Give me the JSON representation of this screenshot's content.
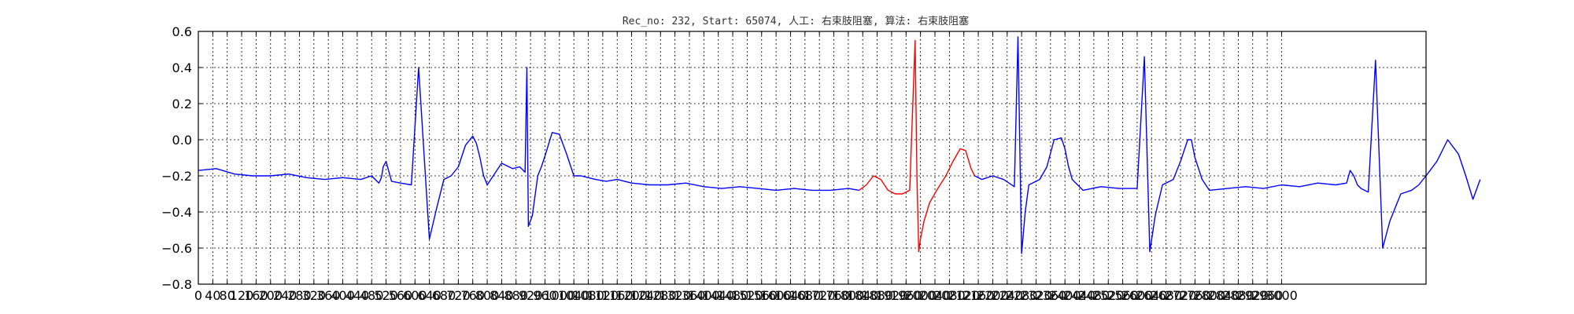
{
  "chart_data": {
    "type": "line",
    "title": "Rec_no: 232, Start: 65074, 人工: 右束肢阻塞, 算法: 右束肢阻塞",
    "xlabel": "",
    "ylabel": "",
    "xlim": [
      0,
      3400
    ],
    "ylim": [
      -0.8,
      0.6
    ],
    "yticks": [
      -0.8,
      -0.6,
      -0.4,
      -0.2,
      0.0,
      0.2,
      0.4,
      0.6
    ],
    "ytick_labels": [
      "−0.8",
      "−0.6",
      "−0.4",
      "−0.2",
      "0.0",
      "0.2",
      "0.4",
      "0.6"
    ],
    "xtick_step": 40,
    "xtick_max": 3000,
    "grid": true,
    "series": [
      {
        "color": "#0000ff",
        "x": [
          0,
          50,
          100,
          150,
          200,
          250,
          300,
          350,
          400,
          450,
          480,
          490,
          500,
          505,
          508,
          512,
          520,
          535,
          560,
          590,
          610,
          640,
          660,
          680,
          700,
          720,
          740,
          760,
          770,
          780,
          790,
          800,
          840,
          870,
          890,
          905,
          910,
          914,
          925,
          940,
          950,
          960,
          980,
          1000,
          1020,
          1040,
          1060,
          1080,
          1100,
          1130,
          1160,
          1200,
          1250,
          1300,
          1350,
          1400,
          1450,
          1500,
          1550,
          1600,
          1650,
          1700,
          1750,
          1800,
          1830
        ],
        "y": [
          -0.17,
          -0.16,
          -0.19,
          -0.2,
          -0.2,
          -0.19,
          -0.21,
          -0.22,
          -0.21,
          -0.22,
          -0.2,
          -0.22,
          -0.24,
          -0.22,
          -0.2,
          -0.15,
          -0.12,
          -0.23,
          -0.24,
          -0.25,
          0.4,
          -0.55,
          -0.38,
          -0.22,
          -0.2,
          -0.15,
          -0.03,
          0.02,
          -0.02,
          -0.1,
          -0.2,
          -0.25,
          -0.13,
          -0.16,
          -0.15,
          -0.18,
          0.4,
          -0.48,
          -0.42,
          -0.2,
          -0.15,
          -0.09,
          0.04,
          0.03,
          -0.08,
          -0.2,
          -0.2,
          -0.21,
          -0.22,
          -0.23,
          -0.22,
          -0.24,
          -0.25,
          -0.25,
          -0.24,
          -0.26,
          -0.27,
          -0.26,
          -0.27,
          -0.28,
          -0.27,
          -0.28,
          -0.28,
          -0.27,
          -0.28
        ]
      },
      {
        "color": "#ff0000",
        "x": [
          1830,
          1850,
          1870,
          1890,
          1910,
          1930,
          1950,
          1970,
          1985,
          1990,
          1995,
          2000,
          2010,
          2025,
          2045,
          2070,
          2090,
          2110,
          2125,
          2140,
          2150
        ],
        "y": [
          -0.28,
          -0.25,
          -0.2,
          -0.22,
          -0.28,
          -0.3,
          -0.3,
          -0.28,
          0.55,
          -0.2,
          -0.62,
          -0.55,
          -0.45,
          -0.35,
          -0.28,
          -0.2,
          -0.12,
          -0.05,
          -0.06,
          -0.16,
          -0.2
        ]
      },
      {
        "color": "#0000ff",
        "x": [
          2150,
          2170,
          2200,
          2230,
          2260,
          2270,
          2280,
          2290,
          2300,
          2330,
          2350,
          2370,
          2390,
          2400,
          2410,
          2420,
          2450,
          2500,
          2550,
          2600,
          2620,
          2635,
          2650,
          2670,
          2700,
          2720,
          2740,
          2750,
          2760,
          2780,
          2800,
          2850,
          2900,
          2950,
          3000,
          3050,
          3100,
          3150,
          3180,
          3190,
          3200,
          3210,
          3220,
          3240,
          3260,
          3280,
          3300,
          3330,
          3360,
          3380,
          3400,
          3430,
          3460,
          3490,
          3510,
          3530,
          3550
        ],
        "y": [
          -0.2,
          -0.22,
          -0.2,
          -0.22,
          -0.26,
          0.57,
          -0.63,
          -0.4,
          -0.25,
          -0.22,
          -0.15,
          0.0,
          0.01,
          -0.05,
          -0.15,
          -0.22,
          -0.28,
          -0.26,
          -0.27,
          -0.27,
          0.46,
          -0.62,
          -0.42,
          -0.25,
          -0.22,
          -0.12,
          0.0,
          0.0,
          -0.1,
          -0.22,
          -0.28,
          -0.27,
          -0.26,
          -0.27,
          -0.25,
          -0.26,
          -0.24,
          -0.25,
          -0.24,
          -0.17,
          -0.2,
          -0.25,
          -0.27,
          -0.29,
          0.44,
          -0.6,
          -0.45,
          -0.3,
          -0.28,
          -0.25,
          -0.2,
          -0.12,
          0.0,
          -0.08,
          -0.2,
          -0.33,
          -0.22
        ]
      }
    ]
  }
}
